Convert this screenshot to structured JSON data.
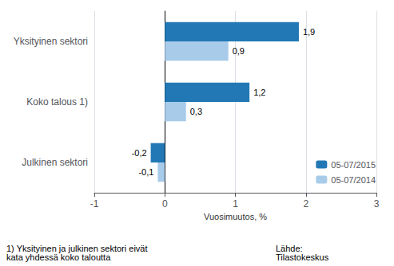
{
  "chart_data": {
    "type": "bar",
    "orientation": "horizontal",
    "categories": [
      "Julkinen sektori",
      "Koko talous 1)",
      "Yksityinen sektori"
    ],
    "series": [
      {
        "name": "05-07/2015",
        "color": "#2178B4",
        "values": [
          -0.2,
          1.2,
          1.9
        ],
        "value_labels": [
          "-0,2",
          "1,2",
          "1,9"
        ]
      },
      {
        "name": "05-07/2014",
        "color": "#A8CBEA",
        "values": [
          -0.1,
          0.3,
          0.9
        ],
        "value_labels": [
          "-0,1",
          "0,3",
          "0,9"
        ]
      }
    ],
    "x_label": "Vuosimuutos, %",
    "xlim": [
      -1,
      3
    ],
    "xticks": [
      -1,
      0,
      1,
      2,
      3
    ],
    "grid": true,
    "legend": "lower right",
    "data_labels": true,
    "annotations": [
      "1) Yksityinen ja julkinen sektori eivät\nkata yhdessä koko taloutta",
      "Lähde:\nTilastokeskus"
    ]
  }
}
